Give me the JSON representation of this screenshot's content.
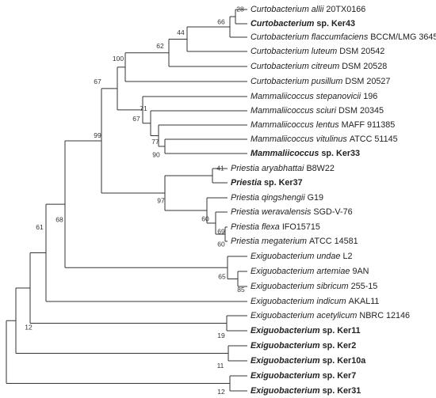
{
  "tree": {
    "leaves": [
      {
        "italic": "Curtobacterium allii",
        "plain": "20TX0166",
        "bold": false
      },
      {
        "italic": "Curtobacterium",
        "plain": "sp. Ker43",
        "bold": true
      },
      {
        "italic": "Curtobacterium flaccumfaciens",
        "plain": "BCCM/LMG 3645",
        "bold": false
      },
      {
        "italic": "Curtobacterium luteum",
        "plain": "DSM 20542",
        "bold": false
      },
      {
        "italic": "Curtobacterium citreum",
        "plain": "DSM 20528",
        "bold": false
      },
      {
        "italic": "Curtobacterium pusillum",
        "plain": "DSM 20527",
        "bold": false
      },
      {
        "italic": "Mammaliicoccus stepanovicii",
        "plain": "196",
        "bold": false
      },
      {
        "italic": "Mammaliicoccus sciuri",
        "plain": "DSM 20345",
        "bold": false
      },
      {
        "italic": "Mammaliicoccus lentus",
        "plain": "MAFF 911385",
        "bold": false
      },
      {
        "italic": "Mammaliicoccus vitulinus",
        "plain": "ATCC 51145",
        "bold": false
      },
      {
        "italic": "Mammaliicoccus",
        "plain": "sp. Ker33",
        "bold": true
      },
      {
        "italic": "Priestia aryabhattai",
        "plain": "B8W22",
        "bold": false
      },
      {
        "italic": "Priestia",
        "plain": "sp. Ker37",
        "bold": true
      },
      {
        "italic": "Priestia qingshengii",
        "plain": "G19",
        "bold": false
      },
      {
        "italic": "Priestia weravalensis",
        "plain": "SGD-V-76",
        "bold": false
      },
      {
        "italic": "Priestia flexa",
        "plain": "IFO15715",
        "bold": false
      },
      {
        "italic": "Priestia megaterium",
        "plain": "ATCC 14581",
        "bold": false
      },
      {
        "italic": "Exiguobacterium undae",
        "plain": "L2",
        "bold": false
      },
      {
        "italic": "Exiguobacterium artemiae",
        "plain": "9AN",
        "bold": false
      },
      {
        "italic": "Exiguobacterium sibricum",
        "plain": "255-15",
        "bold": false
      },
      {
        "italic": "Exiguobacterium indicum",
        "plain": "AKAL11",
        "bold": false
      },
      {
        "italic": "Exiguobacterium acetylicum",
        "plain": "NBRC 12146",
        "bold": false
      },
      {
        "italic": "Exiguobacterium",
        "plain": "sp. Ker11",
        "bold": true
      },
      {
        "italic": "Exiguobacterium",
        "plain": "sp. Ker2",
        "bold": true
      },
      {
        "italic": "Exiguobacterium",
        "plain": "sp. Ker10a",
        "bold": true
      },
      {
        "italic": "Exiguobacterium",
        "plain": "sp. Ker7",
        "bold": true
      },
      {
        "italic": "Exiguobacterium",
        "plain": "sp. Ker31",
        "bold": true
      }
    ],
    "support": [
      28,
      66,
      44,
      62,
      100,
      90,
      77,
      71,
      67,
      67,
      41,
      60,
      69,
      60,
      97,
      99,
      85,
      65,
      68,
      61,
      19,
      12,
      11,
      12
    ]
  }
}
